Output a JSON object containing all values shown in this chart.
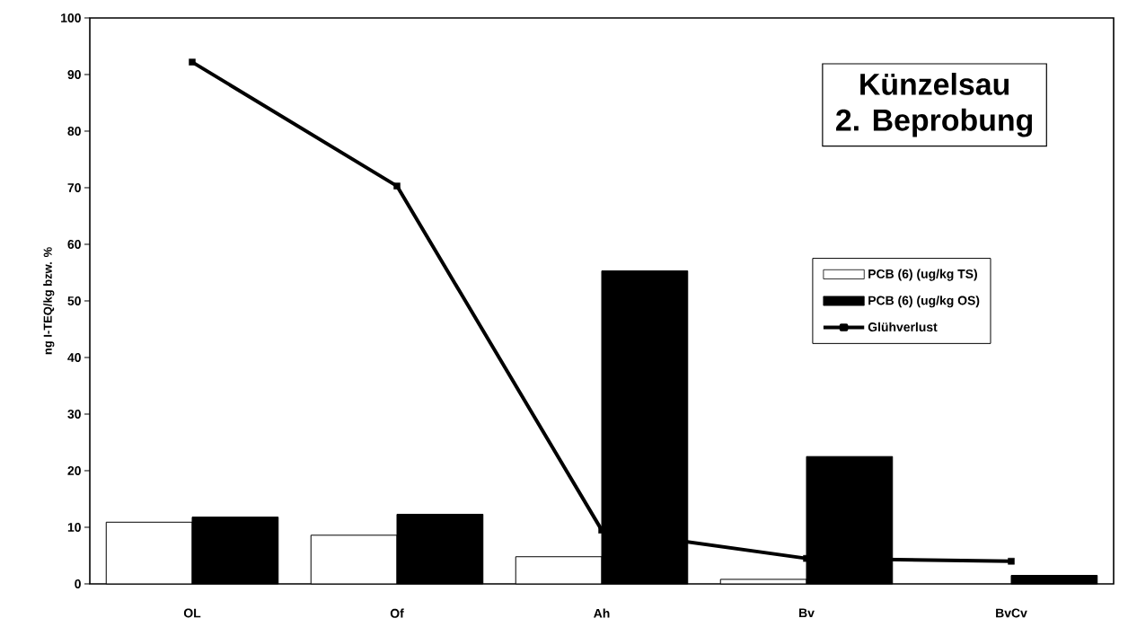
{
  "chart_data": {
    "type": "bar",
    "title": "Künzelsau",
    "subtitle": "2. Beprobung",
    "ylabel": "ng I-TEQ/kg bzw. %",
    "categories": [
      "OL",
      "Of",
      "Ah",
      "Bv",
      "BvCv"
    ],
    "series": [
      {
        "name": "PCB (6) (ug/kg TS)",
        "color": "#ffffff",
        "values": [
          10.9,
          8.6,
          4.8,
          0.8,
          null
        ]
      },
      {
        "name": "PCB (6) (ug/kg OS)",
        "color": "#000000",
        "values": [
          11.8,
          12.3,
          55.3,
          22.5,
          1.5
        ]
      },
      {
        "name": "Glühverlust",
        "type": "line",
        "color": "#000000",
        "values": [
          92.2,
          70.3,
          9.5,
          4.5,
          4.0
        ]
      }
    ],
    "ylim": [
      0,
      100
    ],
    "yticks": [
      0,
      10,
      20,
      30,
      40,
      50,
      60,
      70,
      80,
      90,
      100
    ],
    "legend": "right",
    "marker": "square"
  }
}
